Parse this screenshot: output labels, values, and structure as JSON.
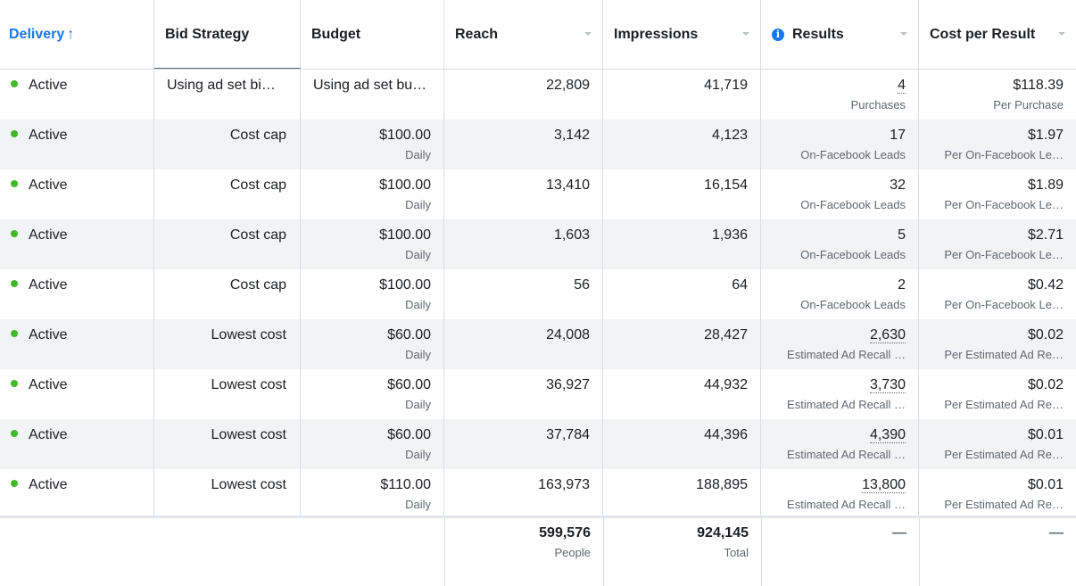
{
  "columns": {
    "delivery": "Delivery",
    "delivery_sort_icon": "↑",
    "bid_strategy": "Bid Strategy",
    "budget": "Budget",
    "reach": "Reach",
    "impressions": "Impressions",
    "results": "Results",
    "results_info_icon": "i",
    "cost_per_result": "Cost per Result"
  },
  "rows": [
    {
      "status": "Active",
      "bid": "Using ad set bi…",
      "budget": "Using ad set bu…",
      "budget_period": "",
      "reach": "22,809",
      "impressions": "41,719",
      "results": "4",
      "results_type": "Purchases",
      "cost": "$118.39",
      "cost_type": "Per Purchase"
    },
    {
      "status": "Active",
      "bid": "Cost cap",
      "budget": "$100.00",
      "budget_period": "Daily",
      "reach": "3,142",
      "impressions": "4,123",
      "results": "17",
      "results_type": "On-Facebook Leads",
      "cost": "$1.97",
      "cost_type": "Per On-Facebook Le…"
    },
    {
      "status": "Active",
      "bid": "Cost cap",
      "budget": "$100.00",
      "budget_period": "Daily",
      "reach": "13,410",
      "impressions": "16,154",
      "results": "32",
      "results_type": "On-Facebook Leads",
      "cost": "$1.89",
      "cost_type": "Per On-Facebook Le…"
    },
    {
      "status": "Active",
      "bid": "Cost cap",
      "budget": "$100.00",
      "budget_period": "Daily",
      "reach": "1,603",
      "impressions": "1,936",
      "results": "5",
      "results_type": "On-Facebook Leads",
      "cost": "$2.71",
      "cost_type": "Per On-Facebook Le…"
    },
    {
      "status": "Active",
      "bid": "Cost cap",
      "budget": "$100.00",
      "budget_period": "Daily",
      "reach": "56",
      "impressions": "64",
      "results": "2",
      "results_type": "On-Facebook Leads",
      "cost": "$0.42",
      "cost_type": "Per On-Facebook Le…"
    },
    {
      "status": "Active",
      "bid": "Lowest cost",
      "budget": "$60.00",
      "budget_period": "Daily",
      "reach": "24,008",
      "impressions": "28,427",
      "results": "2,630",
      "results_type": "Estimated Ad Recall …",
      "cost": "$0.02",
      "cost_type": "Per Estimated Ad Re…"
    },
    {
      "status": "Active",
      "bid": "Lowest cost",
      "budget": "$60.00",
      "budget_period": "Daily",
      "reach": "36,927",
      "impressions": "44,932",
      "results": "3,730",
      "results_type": "Estimated Ad Recall …",
      "cost": "$0.02",
      "cost_type": "Per Estimated Ad Re…"
    },
    {
      "status": "Active",
      "bid": "Lowest cost",
      "budget": "$60.00",
      "budget_period": "Daily",
      "reach": "37,784",
      "impressions": "44,396",
      "results": "4,390",
      "results_type": "Estimated Ad Recall …",
      "cost": "$0.01",
      "cost_type": "Per Estimated Ad Re…"
    },
    {
      "status": "Active",
      "bid": "Lowest cost",
      "budget": "$110.00",
      "budget_period": "Daily",
      "reach": "163,973",
      "impressions": "188,895",
      "results": "13,800",
      "results_type": "Estimated Ad Recall …",
      "cost": "$0.01",
      "cost_type": "Per Estimated Ad Re…"
    }
  ],
  "totals": {
    "reach": "599,576",
    "reach_label": "People",
    "impressions": "924,145",
    "impressions_label": "Total",
    "results": "—",
    "cost": "—"
  },
  "colors": {
    "accent": "#1877f2",
    "active_dot": "#42b72a",
    "row_alt": "#f2f3f5"
  }
}
